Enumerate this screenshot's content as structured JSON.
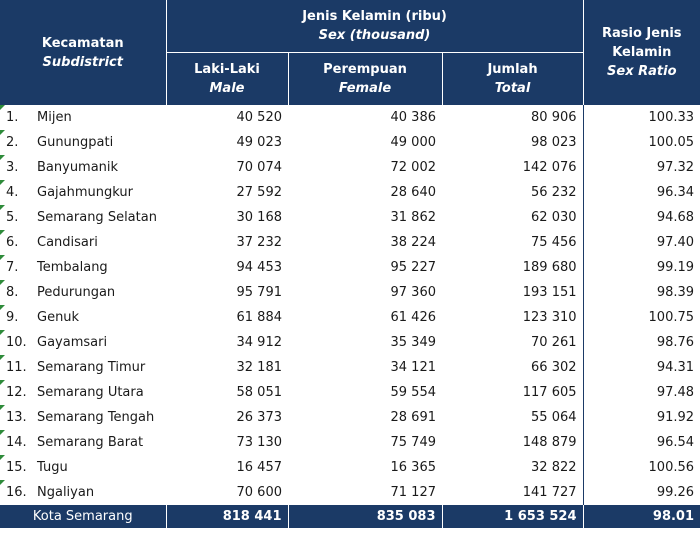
{
  "header": {
    "subdistrict_id": "Kecamatan",
    "subdistrict_en": "Subdistrict",
    "sex_id": "Jenis Kelamin (ribu)",
    "sex_en": "Sex (thousand)",
    "male_id": "Laki-Laki",
    "male_en": "Male",
    "female_id": "Perempuan",
    "female_en": "Female",
    "total_id": "Jumlah",
    "total_en": "Total",
    "ratio_id_1": "Rasio Jenis",
    "ratio_id_2": "Kelamin",
    "ratio_en": "Sex Ratio"
  },
  "rows": [
    {
      "no": "1.",
      "name": "Mijen",
      "male": "40 520",
      "female": "40 386",
      "total": "80 906",
      "ratio": "100.33"
    },
    {
      "no": "2.",
      "name": "Gunungpati",
      "male": "49 023",
      "female": "49 000",
      "total": "98 023",
      "ratio": "100.05"
    },
    {
      "no": "3.",
      "name": "Banyumanik",
      "male": "70 074",
      "female": "72 002",
      "total": "142 076",
      "ratio": "97.32"
    },
    {
      "no": "4.",
      "name": "Gajahmungkur",
      "male": "27 592",
      "female": "28 640",
      "total": "56 232",
      "ratio": "96.34"
    },
    {
      "no": "5.",
      "name": "Semarang Selatan",
      "male": "30 168",
      "female": "31 862",
      "total": "62 030",
      "ratio": "94.68"
    },
    {
      "no": "6.",
      "name": "Candisari",
      "male": "37 232",
      "female": "38 224",
      "total": "75 456",
      "ratio": "97.40"
    },
    {
      "no": "7.",
      "name": "Tembalang",
      "male": "94 453",
      "female": "95 227",
      "total": "189 680",
      "ratio": "99.19"
    },
    {
      "no": "8.",
      "name": "Pedurungan",
      "male": "95 791",
      "female": "97 360",
      "total": "193 151",
      "ratio": "98.39"
    },
    {
      "no": "9.",
      "name": "Genuk",
      "male": "61 884",
      "female": "61 426",
      "total": "123 310",
      "ratio": "100.75"
    },
    {
      "no": "10.",
      "name": "Gayamsari",
      "male": "34 912",
      "female": "35 349",
      "total": "70 261",
      "ratio": "98.76"
    },
    {
      "no": "11.",
      "name": "Semarang Timur",
      "male": "32 181",
      "female": "34 121",
      "total": "66 302",
      "ratio": "94.31"
    },
    {
      "no": "12.",
      "name": "Semarang Utara",
      "male": "58 051",
      "female": "59 554",
      "total": "117 605",
      "ratio": "97.48"
    },
    {
      "no": "13.",
      "name": "Semarang Tengah",
      "male": "26 373",
      "female": "28 691",
      "total": "55 064",
      "ratio": "91.92"
    },
    {
      "no": "14.",
      "name": "Semarang Barat",
      "male": "73 130",
      "female": "75 749",
      "total": "148 879",
      "ratio": "96.54"
    },
    {
      "no": "15.",
      "name": "Tugu",
      "male": "16 457",
      "female": "16 365",
      "total": "32 822",
      "ratio": "100.56"
    },
    {
      "no": "16.",
      "name": "Ngaliyan",
      "male": "70 600",
      "female": "71 127",
      "total": "141 727",
      "ratio": "99.26"
    }
  ],
  "footer": {
    "label": "Kota Semarang",
    "male": "818 441",
    "female": "835 083",
    "total": "1 653 524",
    "ratio": "98.01"
  },
  "colors": {
    "header_bg": "#1b3a66",
    "marker": "#2e8b3a"
  }
}
